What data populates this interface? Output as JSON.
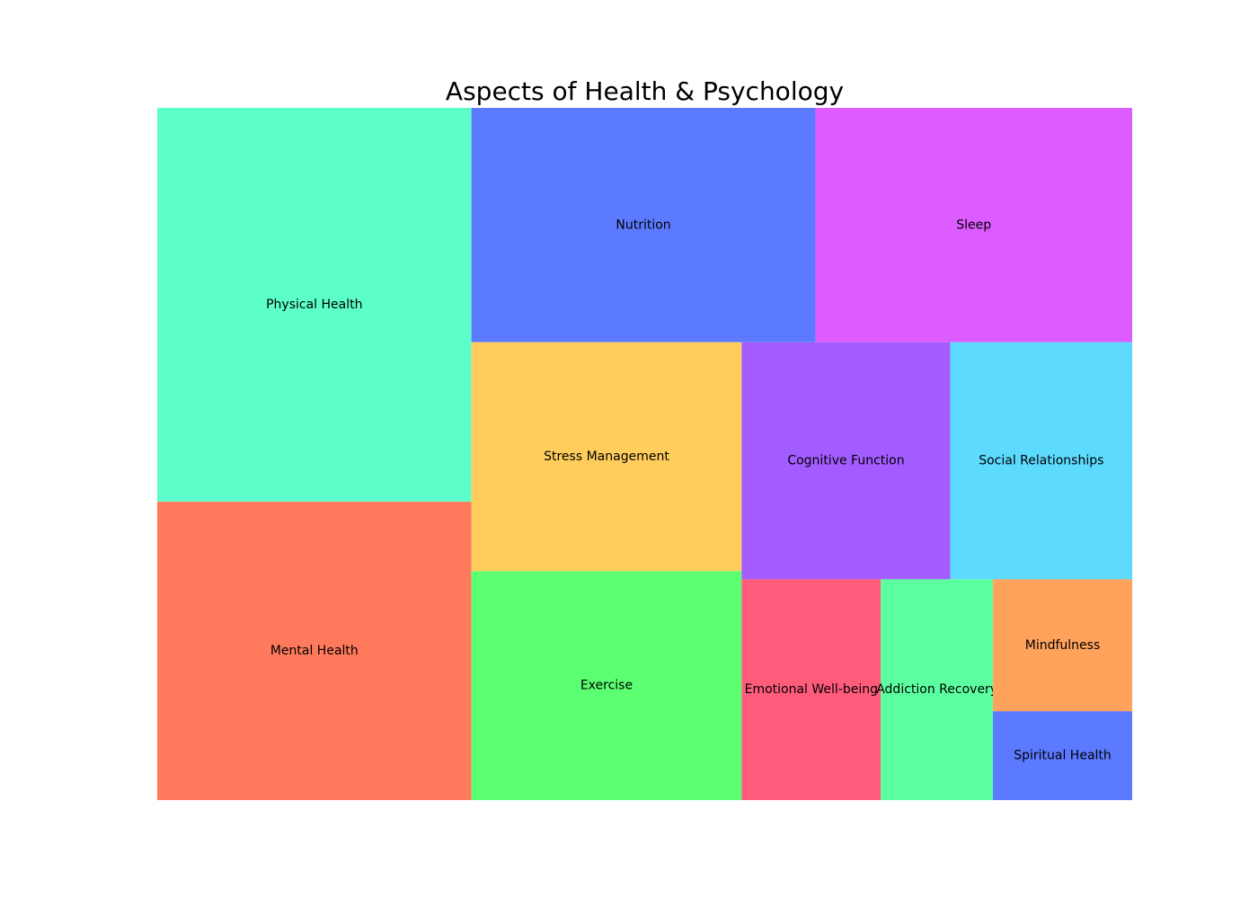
{
  "chart_data": {
    "type": "treemap",
    "title": "Aspects of Health & Psychology",
    "items": [
      {
        "label": "Mental Health",
        "value": 250,
        "color": "#FF7A5C"
      },
      {
        "label": "Physical Health",
        "value": 330,
        "color": "#5CFFCA"
      },
      {
        "label": "Nutrition",
        "value": 215,
        "color": "#5C7AFF"
      },
      {
        "label": "Sleep",
        "value": 198,
        "color": "#DD5CFF"
      },
      {
        "label": "Stress Management",
        "value": 165,
        "color": "#FFCD5C"
      },
      {
        "label": "Exercise",
        "value": 165,
        "color": "#5CFF72"
      },
      {
        "label": "Cognitive Function",
        "value": 132,
        "color": "#A35CFF"
      },
      {
        "label": "Social Relationships",
        "value": 115,
        "color": "#5CDBFF"
      },
      {
        "label": "Emotional Well-being",
        "value": 82,
        "color": "#FF5C7C"
      },
      {
        "label": "Addiction Recovery",
        "value": 66,
        "color": "#5CFFA0"
      },
      {
        "label": "Mindfulness",
        "value": 49,
        "color": "#FFA35C"
      },
      {
        "label": "Spiritual Health",
        "value": 33,
        "color": "#5C7AFF"
      }
    ]
  }
}
